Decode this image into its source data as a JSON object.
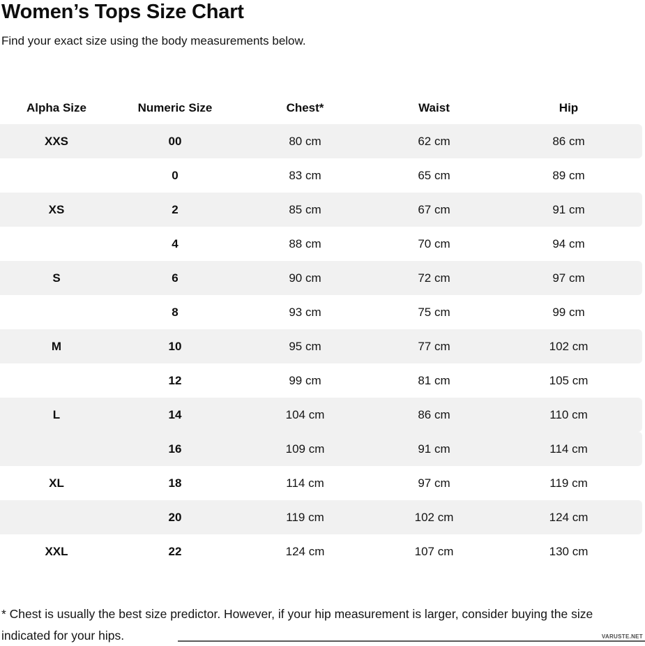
{
  "page": {
    "title": "Women’s Tops Size Chart",
    "subtitle": "Find your exact size using the body measurements below.",
    "footnote": "* Chest is usually the best size predictor. However, if your hip measurement is larger, consider buying the size indicated for your hips.",
    "watermark": "VARUSTE.NET"
  },
  "colors": {
    "row_shade": "#f1f1f1",
    "text": "#111111",
    "watermark": "#4a4a4a"
  },
  "chart_data": {
    "type": "table",
    "title": "Women’s Tops Size Chart",
    "headers": [
      "Alpha Size",
      "Numeric Size",
      "Chest*",
      "Waist",
      "Hip"
    ],
    "rows": [
      [
        "XXS",
        "00",
        "80 cm",
        "62 cm",
        "86 cm"
      ],
      [
        "",
        "0",
        "83 cm",
        "65 cm",
        "89 cm"
      ],
      [
        "XS",
        "2",
        "85 cm",
        "67 cm",
        "91 cm"
      ],
      [
        "",
        "4",
        "88 cm",
        "70 cm",
        "94 cm"
      ],
      [
        "S",
        "6",
        "90 cm",
        "72 cm",
        "97 cm"
      ],
      [
        "",
        "8",
        "93 cm",
        "75 cm",
        "99 cm"
      ],
      [
        "M",
        "10",
        "95 cm",
        "77 cm",
        "102 cm"
      ],
      [
        "",
        "12",
        "99 cm",
        "81 cm",
        "105 cm"
      ],
      [
        "L",
        "14",
        "104 cm",
        "86 cm",
        "110 cm"
      ],
      [
        "",
        "16",
        "109 cm",
        "91 cm",
        "114 cm"
      ],
      [
        "XL",
        "18",
        "114 cm",
        "97 cm",
        "119 cm"
      ],
      [
        "",
        "20",
        "119 cm",
        "102 cm",
        "124 cm"
      ],
      [
        "XXL",
        "22",
        "124 cm",
        "107 cm",
        "130 cm"
      ]
    ],
    "shaded_rows": [
      0,
      2,
      4,
      6,
      8,
      9,
      11
    ]
  }
}
